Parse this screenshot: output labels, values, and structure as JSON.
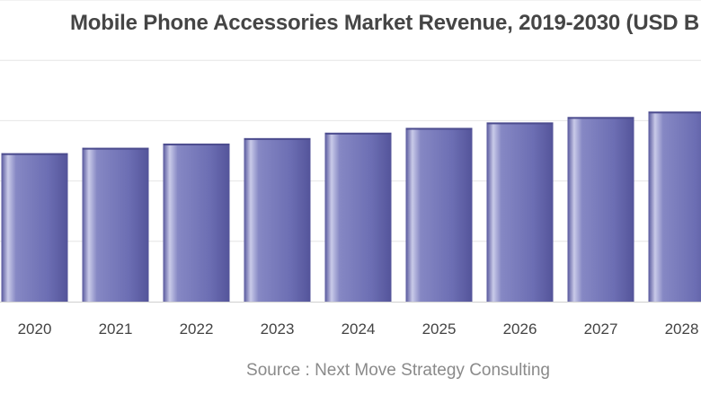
{
  "chart_data": {
    "type": "bar",
    "title": "Mobile Phone Accessories Market Revenue, 2019-2030 (USD B",
    "source": "Source : Next Move Strategy Consulting",
    "categories": [
      "2020",
      "2021",
      "2022",
      "2023",
      "2024",
      "2025",
      "2026",
      "2027",
      "2028"
    ],
    "values": [
      246,
      255,
      262,
      271,
      280,
      288,
      297,
      306,
      315
    ],
    "xlabel": "",
    "ylabel": "",
    "ylim": [
      0,
      500
    ],
    "grid": true,
    "colors": {
      "bar_edge": "#5a5aa0",
      "bar_mid": "#7e80bf",
      "bar_highlight": "#d7d8ee",
      "grid": "#e6e6e6",
      "tick_label": "#444444"
    }
  }
}
